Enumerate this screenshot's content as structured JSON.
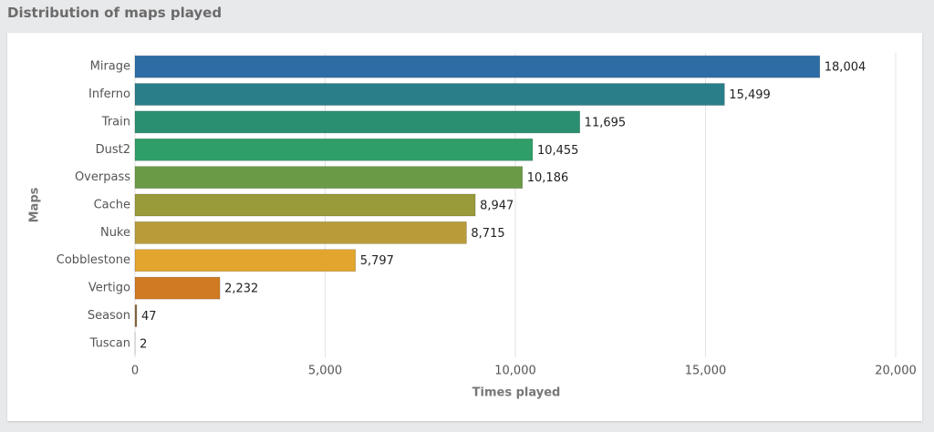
{
  "chart_data": {
    "type": "bar",
    "orientation": "horizontal",
    "title": "Distribution of maps played",
    "x_label": "Times played",
    "y_label": "Maps",
    "categories": [
      "Mirage",
      "Inferno",
      "Train",
      "Dust2",
      "Overpass",
      "Cache",
      "Nuke",
      "Cobblestone",
      "Vertigo",
      "Season",
      "Tuscan"
    ],
    "values": [
      18004,
      15499,
      11695,
      10455,
      10186,
      8947,
      8715,
      5797,
      2232,
      47,
      2
    ],
    "value_labels": [
      "18,004",
      "15,499",
      "11,695",
      "10,455",
      "10,186",
      "8,947",
      "8,715",
      "5,797",
      "2,232",
      "47",
      "2"
    ],
    "colors": [
      "#2e6ca6",
      "#2a7e8a",
      "#2a8f70",
      "#2f9e68",
      "#6a9a46",
      "#999b3a",
      "#b89c3a",
      "#e2a52e",
      "#d07b22",
      "#8a6a3a",
      "#b0b0b0"
    ],
    "xlim": [
      0,
      20000
    ],
    "xticks": [
      0,
      {
        "value": 5000,
        "label": "5,000"
      },
      {
        "value": 10000,
        "label": "10,000"
      },
      {
        "value": 15000,
        "label": "15,000"
      },
      {
        "value": 20000,
        "label": "20,000"
      }
    ],
    "grid": true
  }
}
